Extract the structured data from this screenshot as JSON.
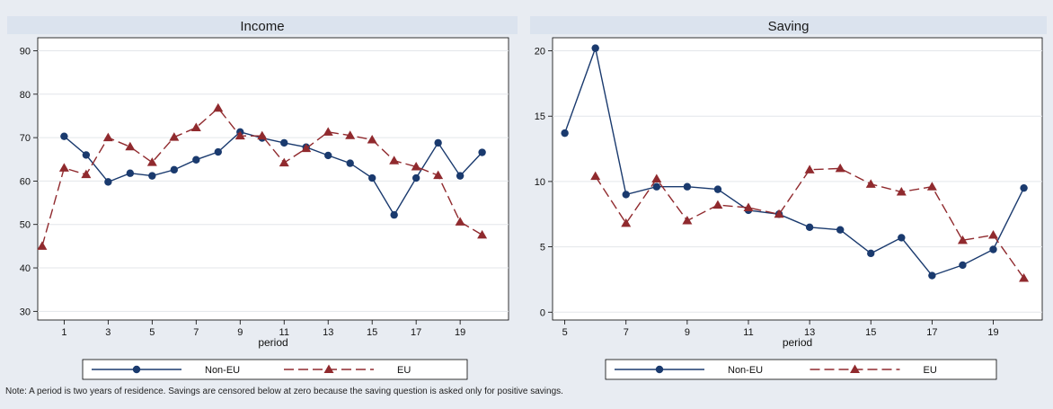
{
  "colors": {
    "background": "#e8ecf2",
    "plot_bg": "#ffffff",
    "grid": "#e3e6ea",
    "non_eu": "#1a3a6e",
    "eu": "#902a2e"
  },
  "note": "Note: A period is two years of residence. Savings are censored below at zero because the saving question is asked only for positive savings.",
  "chart_data": [
    {
      "type": "line",
      "title": "Income",
      "xlabel": "period",
      "ylabel": "",
      "xlim": [
        -0.2,
        21.2
      ],
      "ylim": [
        28,
        93
      ],
      "x_ticks": [
        1,
        3,
        5,
        7,
        9,
        11,
        13,
        15,
        17,
        19
      ],
      "y_ticks": [
        30,
        40,
        50,
        60,
        70,
        80,
        90
      ],
      "grid": true,
      "legend_position": "bottom",
      "series": [
        {
          "name": "Non-EU",
          "marker": "circle",
          "dash": "solid",
          "x": [
            1,
            2,
            3,
            4,
            5,
            6,
            7,
            8,
            9,
            10,
            11,
            12,
            13,
            14,
            15,
            16,
            17,
            18,
            19,
            20
          ],
          "y": [
            70.3,
            66.0,
            59.8,
            61.8,
            61.2,
            62.6,
            64.9,
            66.7,
            71.3,
            69.9,
            68.8,
            67.8,
            65.9,
            64.1,
            60.7,
            52.2,
            60.7,
            68.8,
            61.2,
            66.6
          ]
        },
        {
          "name": "EU",
          "marker": "triangle",
          "dash": "dashed",
          "x": [
            0,
            1,
            2,
            3,
            4,
            5,
            6,
            7,
            8,
            9,
            10,
            11,
            12,
            13,
            14,
            15,
            16,
            17,
            18,
            19,
            20
          ],
          "y": [
            45.0,
            63.0,
            61.5,
            70.0,
            67.9,
            64.3,
            70.1,
            72.3,
            76.8,
            70.4,
            70.4,
            64.2,
            67.5,
            71.3,
            70.5,
            69.5,
            64.7,
            63.3,
            61.3,
            50.6,
            47.6
          ]
        }
      ]
    },
    {
      "type": "line",
      "title": "Saving",
      "xlabel": "period",
      "ylabel": "",
      "xlim": [
        4.6,
        20.6
      ],
      "ylim": [
        -0.6,
        21.0
      ],
      "x_ticks": [
        5,
        7,
        9,
        11,
        13,
        15,
        17,
        19
      ],
      "y_ticks": [
        0,
        5,
        10,
        15,
        20
      ],
      "grid": true,
      "legend_position": "bottom",
      "series": [
        {
          "name": "Non-EU",
          "marker": "circle",
          "dash": "solid",
          "x": [
            5,
            6,
            7,
            8,
            9,
            10,
            11,
            12,
            13,
            14,
            15,
            16,
            17,
            18,
            19,
            20
          ],
          "y": [
            13.7,
            20.2,
            9.0,
            9.6,
            9.6,
            9.4,
            7.8,
            7.5,
            6.5,
            6.3,
            4.5,
            5.7,
            2.8,
            3.6,
            4.8,
            9.5
          ]
        },
        {
          "name": "EU",
          "marker": "triangle",
          "dash": "dashed",
          "x": [
            6,
            7,
            8,
            9,
            10,
            11,
            12,
            13,
            14,
            15,
            16,
            17,
            18,
            19,
            20
          ],
          "y": [
            10.4,
            6.8,
            10.2,
            7.0,
            8.2,
            8.0,
            7.5,
            10.9,
            11.0,
            9.8,
            9.2,
            9.6,
            5.5,
            5.9,
            2.6
          ]
        }
      ]
    }
  ]
}
